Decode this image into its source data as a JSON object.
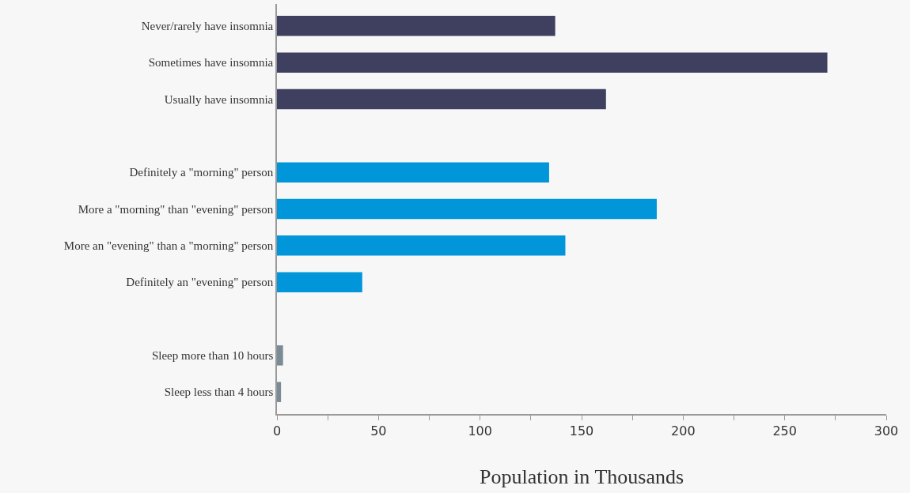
{
  "chart_data": {
    "type": "bar",
    "orientation": "horizontal",
    "xlabel": "Population in Thousands",
    "categories": [
      "Never/rarely have insomnia",
      "Sometimes have insomnia",
      "Usually have insomnia",
      null,
      "Definitely a \"morning\" person",
      "More a \"morning\" than \"evening\" person",
      "More an \"evening\" than a \"morning\" person",
      "Definitely an \"evening\" person",
      null,
      "Sleep more than 10 hours",
      "Sleep less than 4 hours"
    ],
    "values": [
      137,
      271,
      162,
      null,
      134,
      187,
      142,
      42,
      null,
      3,
      2
    ],
    "colors": [
      "#3f3f5f",
      "#3f3f5f",
      "#3f3f5f",
      null,
      "#0096d9",
      "#0096d9",
      "#0096d9",
      "#0096d9",
      null,
      "#7b8b96",
      "#7b8b96"
    ],
    "xlim": [
      0,
      300
    ],
    "xticks": [
      0,
      {
        "value": 25,
        "label": null
      },
      50,
      {
        "value": 75,
        "label": null
      },
      100,
      {
        "value": 125,
        "label": null
      },
      150,
      {
        "value": 175,
        "label": null
      },
      200,
      {
        "value": 225,
        "label": null
      },
      250,
      {
        "value": 275,
        "label": null
      },
      300
    ],
    "tick_labels": "xy"
  }
}
